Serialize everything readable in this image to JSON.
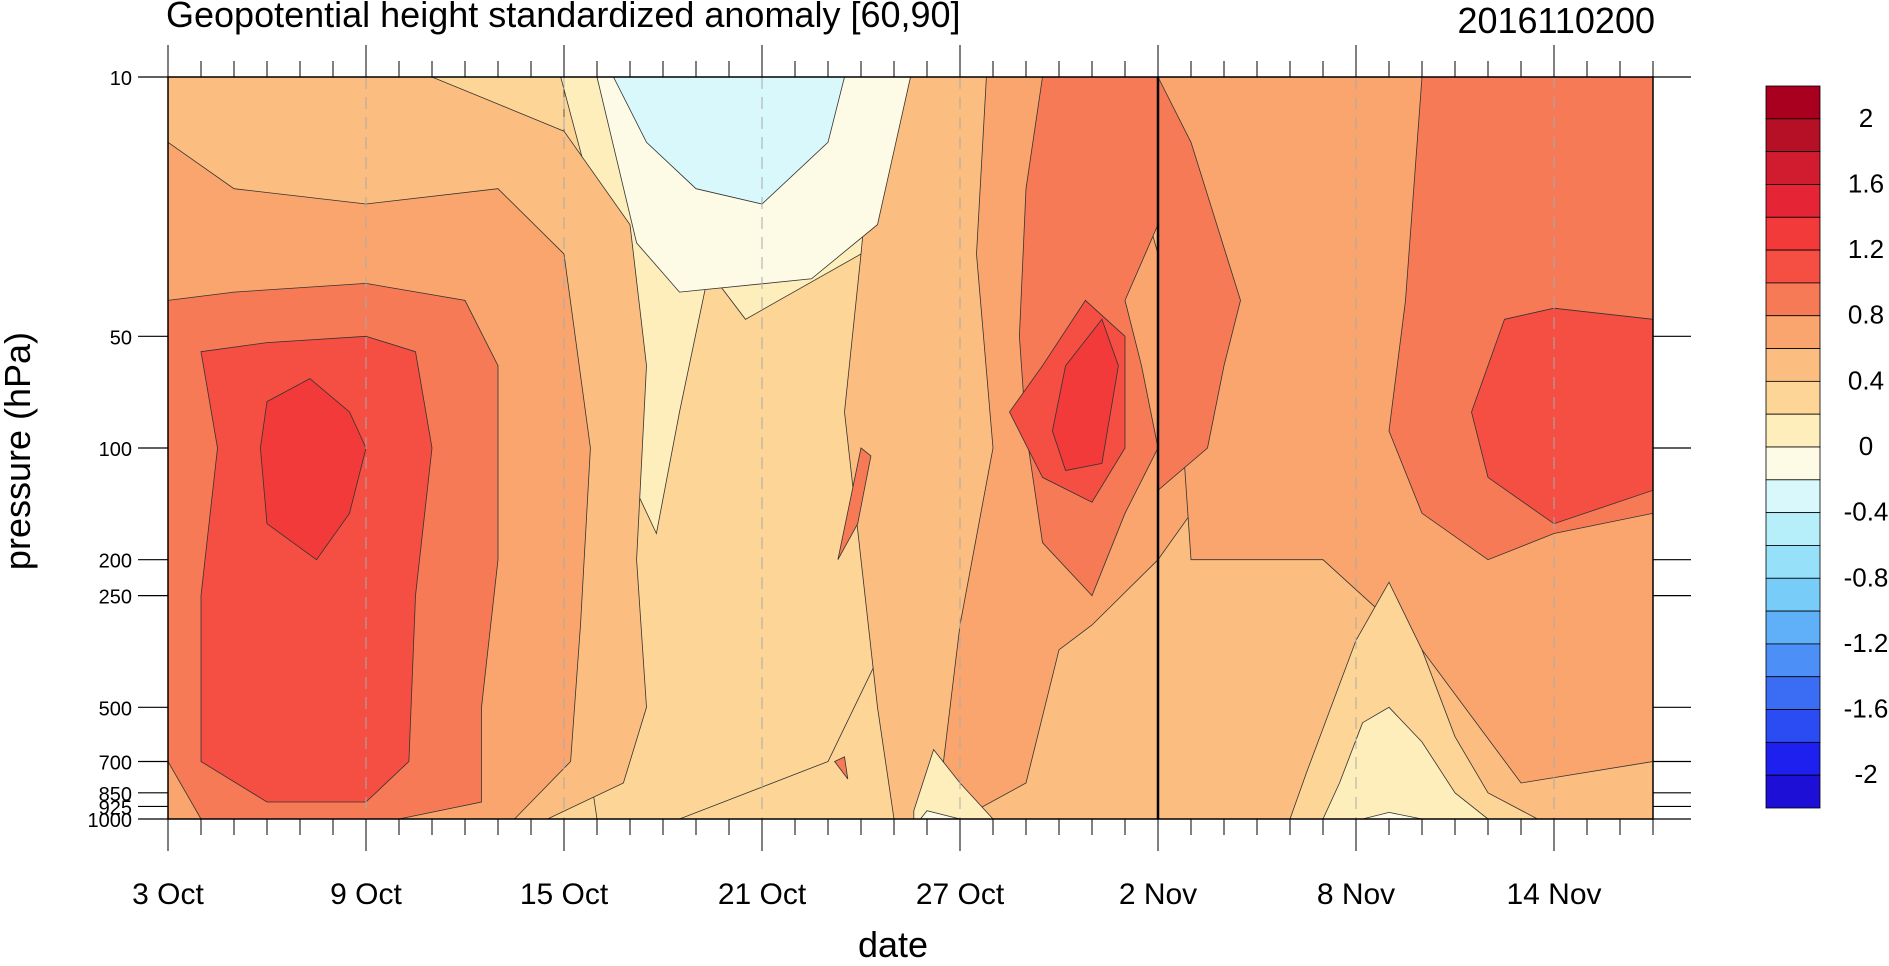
{
  "chart_data": {
    "type": "heatmap",
    "title": "Geopotential height standardized anomaly [60,90]",
    "timestamp": "2016110200",
    "xlabel": "date",
    "ylabel": "pressure (hPa)",
    "x_tick_labels": [
      "3 Oct",
      "9 Oct",
      "15 Oct",
      "21 Oct",
      "27 Oct",
      "2 Nov",
      "8 Nov",
      "14 Nov"
    ],
    "x_day_range": [
      "3 Oct",
      "17 Nov"
    ],
    "y_ticks": [
      10,
      50,
      100,
      200,
      250,
      500,
      700,
      850,
      925,
      1000
    ],
    "y_tick_labels": [
      "10",
      "50",
      "100",
      "200",
      "250",
      "500",
      "700",
      "850",
      "925",
      "1000"
    ],
    "y_scale": "log-pressure (reversed)",
    "y_range": [
      1000,
      10
    ],
    "vertical_marker": "2 Nov",
    "colorbar": {
      "levels": [
        -2.2,
        -2.0,
        -1.8,
        -1.6,
        -1.4,
        -1.2,
        -1.0,
        -0.8,
        -0.6,
        -0.4,
        -0.2,
        0,
        0.2,
        0.4,
        0.6,
        0.8,
        1.0,
        1.2,
        1.4,
        1.6,
        1.8,
        2.0,
        2.2
      ],
      "labels": [
        "2",
        "1.6",
        "1.2",
        "0.8",
        "0.4",
        "0",
        "-0.4",
        "-0.8",
        "-1.2",
        "-1.6",
        "-2"
      ],
      "colors": [
        "#1e0fd6",
        "#1e20f0",
        "#2a4cf2",
        "#3b6cf4",
        "#4c8ff6",
        "#5fb0f8",
        "#78cdf8",
        "#96e0fa",
        "#b6effa",
        "#d8f8fb",
        "#fdfbe5",
        "#fdeebc",
        "#fcd597",
        "#fbbe80",
        "#f9a56d",
        "#f77a56",
        "#f54e42",
        "#f23a3a",
        "#e52535",
        "#d01c2e",
        "#b51026",
        "#a8001e"
      ]
    },
    "contour_regions": [
      {
        "level": 0.2,
        "desc": "base weak positive anomaly"
      },
      {
        "level": 0.4,
        "desc": "3-14 Oct column, 25 Oct-17 Nov broad region"
      },
      {
        "level": 0.6,
        "desc": "3-14 Oct column; 22-31 Oct; 2-17 Nov stratosphere"
      },
      {
        "level": 0.8,
        "desc": "4-12 Oct column; 27 Oct-1 Nov stratosphere; 10-17 Nov"
      },
      {
        "level": 1.0,
        "desc": "5-11 Oct column max; 28-31 Oct 40-120 hPa; 12-16 Nov 40-150 hPa"
      },
      {
        "level": 1.2,
        "desc": "6-9 Oct 70-200 hPa core"
      },
      {
        "level": 0.0,
        "desc": "16-25 Oct weak near zero, 1000 hPa patches 27 Oct, 8-10 Nov"
      },
      {
        "level": -0.2,
        "desc": "17-24 Oct 10-40 hPa"
      },
      {
        "level": -0.4,
        "desc": "19-22 Oct 10-25 hPa"
      }
    ]
  }
}
